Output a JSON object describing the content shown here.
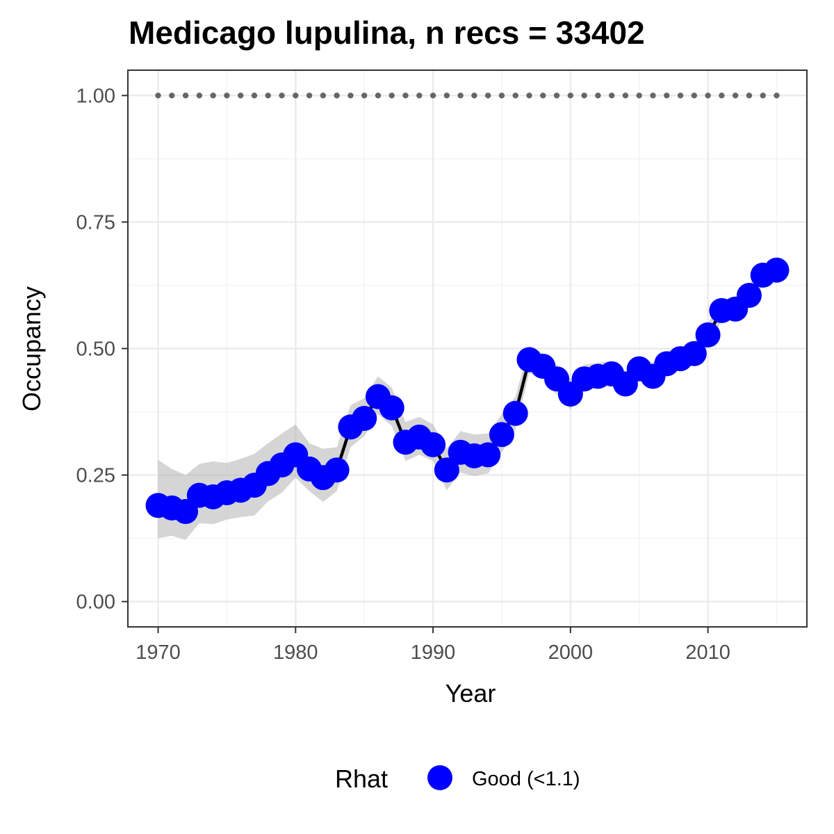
{
  "chart_data": {
    "type": "line",
    "title": "Medicago lupulina, n recs = 33402",
    "xlabel": "Year",
    "ylabel": "Occupancy",
    "xlim": [
      1967.8,
      2017.2
    ],
    "ylim": [
      -0.05,
      1.05
    ],
    "x_ticks": [
      1970,
      1980,
      1990,
      2000,
      2010
    ],
    "x_tick_labels": [
      "1970",
      "1980",
      "1990",
      "2000",
      "2010"
    ],
    "y_ticks": [
      0,
      0.25,
      0.5,
      0.75,
      1.0
    ],
    "y_tick_labels": [
      "0.00",
      "0.25",
      "0.50",
      "0.75",
      "1.00"
    ],
    "grid": true,
    "legend": {
      "position": "bottom",
      "title": "Rhat",
      "entries": [
        {
          "label": "Good (<1.1)",
          "color": "#0000ff"
        }
      ]
    },
    "x": [
      1970,
      1971,
      1972,
      1973,
      1974,
      1975,
      1976,
      1977,
      1978,
      1979,
      1980,
      1981,
      1982,
      1983,
      1984,
      1985,
      1986,
      1987,
      1988,
      1989,
      1990,
      1991,
      1992,
      1993,
      1994,
      1995,
      1996,
      1997,
      1998,
      1999,
      2000,
      2001,
      2002,
      2003,
      2004,
      2005,
      2006,
      2007,
      2008,
      2009,
      2010,
      2011,
      2012,
      2013,
      2014,
      2015
    ],
    "series": [
      {
        "values": [
          0.19,
          0.185,
          0.178,
          0.21,
          0.207,
          0.215,
          0.22,
          0.23,
          0.253,
          0.27,
          0.29,
          0.262,
          0.245,
          0.26,
          0.345,
          0.362,
          0.405,
          0.383,
          0.315,
          0.325,
          0.31,
          0.26,
          0.295,
          0.288,
          0.29,
          0.33,
          0.372,
          0.478,
          0.465,
          0.44,
          0.41,
          0.44,
          0.445,
          0.45,
          0.43,
          0.46,
          0.445,
          0.47,
          0.48,
          0.49,
          0.527,
          0.575,
          0.578,
          0.605,
          0.645,
          0.655
        ],
        "lower": [
          0.125,
          0.13,
          0.122,
          0.155,
          0.153,
          0.162,
          0.167,
          0.17,
          0.198,
          0.215,
          0.245,
          0.218,
          0.197,
          0.218,
          0.305,
          0.327,
          0.37,
          0.347,
          0.278,
          0.29,
          0.278,
          0.22,
          0.255,
          0.248,
          0.253,
          0.294,
          0.34,
          0.452,
          0.44,
          0.41,
          0.38,
          0.415,
          0.423,
          0.425,
          0.405,
          0.437,
          0.42,
          0.447,
          0.458,
          0.468,
          0.505,
          0.555,
          0.557,
          0.584,
          0.625,
          0.637
        ],
        "upper": [
          0.28,
          0.262,
          0.25,
          0.272,
          0.277,
          0.274,
          0.282,
          0.292,
          0.313,
          0.332,
          0.35,
          0.313,
          0.302,
          0.305,
          0.388,
          0.402,
          0.445,
          0.423,
          0.355,
          0.365,
          0.35,
          0.302,
          0.337,
          0.33,
          0.332,
          0.37,
          0.405,
          0.505,
          0.49,
          0.468,
          0.44,
          0.468,
          0.472,
          0.475,
          0.455,
          0.484,
          0.472,
          0.494,
          0.503,
          0.512,
          0.55,
          0.597,
          0.6,
          0.626,
          0.665,
          0.675
        ],
        "color": "#0000ff",
        "ribbon_color": "#b3b3b3",
        "line_color": "#000000"
      }
    ],
    "reference_line": {
      "y": 1.0,
      "style": "dotted",
      "color": "#666666"
    }
  }
}
